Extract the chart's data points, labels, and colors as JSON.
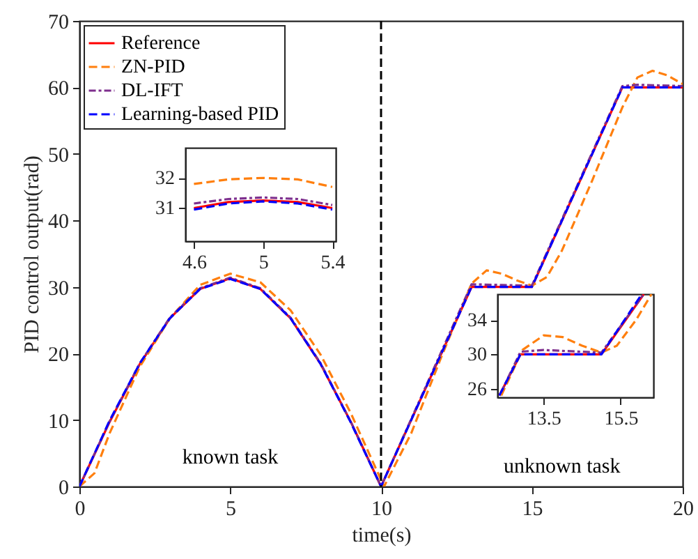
{
  "chart_data": [
    {
      "type": "line",
      "xlabel": "time(s)",
      "ylabel": "PID control output(rad)",
      "xlim": [
        0,
        20
      ],
      "ylim": [
        0,
        70
      ],
      "xticks": [
        0,
        5,
        10,
        15,
        20
      ],
      "yticks": [
        0,
        10,
        20,
        30,
        40,
        50,
        60,
        70
      ],
      "grid": false,
      "legend": "top left",
      "marker": "none",
      "series": [
        {
          "name": "Reference",
          "color": "#ff0000",
          "line_style": "solid",
          "x": [
            0,
            1,
            2,
            3,
            4,
            5,
            6,
            7,
            8,
            9,
            10,
            13,
            15,
            18,
            20
          ],
          "values": [
            0,
            9.7,
            18.4,
            25.3,
            29.7,
            31.3,
            29.7,
            25.3,
            18.4,
            9.7,
            0,
            30,
            30,
            60,
            60
          ]
        },
        {
          "name": "ZN-PID",
          "color": "#ff7f0e",
          "line_style": "dashed",
          "x": [
            0,
            0.5,
            1,
            2,
            3,
            4,
            5,
            6,
            7,
            8,
            9,
            10.1,
            11,
            12,
            13,
            13.5,
            14,
            14.5,
            15,
            15.5,
            16,
            17,
            18,
            18.5,
            19,
            19.5,
            20
          ],
          "values": [
            0,
            2,
            8,
            18,
            25.3,
            30.3,
            32,
            30.7,
            26.5,
            19.8,
            11,
            0,
            8,
            19.5,
            30.5,
            32.5,
            32,
            31,
            30.2,
            31.5,
            35.5,
            46,
            57,
            61.5,
            62.5,
            61.8,
            60.5
          ]
        },
        {
          "name": "DL-IFT",
          "color": "#7e2f8e",
          "line_style": "dashdot",
          "x": [
            0,
            1,
            2,
            3,
            4,
            5,
            6,
            7,
            8,
            9,
            10,
            13,
            14,
            15,
            18,
            18.5,
            20
          ],
          "values": [
            0,
            9.8,
            18.5,
            25.4,
            29.8,
            31.4,
            29.8,
            25.4,
            18.5,
            9.7,
            0,
            30.4,
            30.3,
            30.2,
            60.2,
            60.4,
            60.2
          ]
        },
        {
          "name": "Learning-based PID",
          "color": "#0000ff",
          "line_style": "dashed",
          "x": [
            0,
            1,
            2,
            3,
            4,
            5,
            6,
            7,
            8,
            9,
            10,
            13,
            15,
            18,
            20
          ],
          "values": [
            0,
            9.9,
            18.5,
            25.3,
            29.7,
            31.2,
            29.7,
            25.3,
            18.4,
            9.6,
            0,
            30,
            30,
            60,
            60
          ]
        }
      ],
      "ref_lines": [
        {
          "axis": "x",
          "value": 10,
          "color": "#000000",
          "line_style": "dashed"
        }
      ],
      "annotations": [
        "known task",
        "unknown task"
      ]
    },
    {
      "type": "line",
      "xlim": [
        4.55,
        5.42
      ],
      "ylim": [
        29.9,
        33
      ],
      "xticks": [
        4.6,
        5,
        5.4
      ],
      "yticks": [
        31,
        32
      ],
      "grid": false,
      "marker": "none",
      "series": [
        {
          "color": "#ff0000",
          "line_style": "solid",
          "x": [
            4.6,
            4.8,
            5,
            5.2,
            5.4
          ],
          "values": [
            31.0,
            31.2,
            31.25,
            31.2,
            31.0
          ]
        },
        {
          "color": "#ff7f0e",
          "line_style": "dashed",
          "x": [
            4.6,
            4.8,
            5,
            5.2,
            5.4
          ],
          "values": [
            31.8,
            31.95,
            32.0,
            31.95,
            31.7
          ]
        },
        {
          "color": "#7e2f8e",
          "line_style": "dashdot",
          "x": [
            4.6,
            4.8,
            5,
            5.2,
            5.4
          ],
          "values": [
            31.15,
            31.3,
            31.35,
            31.3,
            31.1
          ]
        },
        {
          "color": "#0000ff",
          "line_style": "dashed",
          "x": [
            4.6,
            4.8,
            5,
            5.2,
            5.4
          ],
          "values": [
            30.95,
            31.15,
            31.22,
            31.15,
            30.95
          ]
        }
      ]
    },
    {
      "type": "line",
      "xlim": [
        12.3,
        16.35
      ],
      "ylim": [
        25,
        37
      ],
      "xticks": [
        13.5,
        15.5
      ],
      "yticks": [
        26,
        30,
        34
      ],
      "grid": false,
      "marker": "none",
      "series": [
        {
          "color": "#ff0000",
          "line_style": "solid",
          "x": [
            12.35,
            12.9,
            15,
            16.1
          ],
          "values": [
            25.2,
            30,
            30,
            37
          ]
        },
        {
          "color": "#ff7f0e",
          "line_style": "dashed",
          "x": [
            12.4,
            12.95,
            13.5,
            14,
            14.5,
            15,
            15.4,
            15.9,
            16.3
          ],
          "values": [
            25.2,
            30.5,
            32.2,
            32,
            31,
            30.2,
            31,
            34,
            37
          ]
        },
        {
          "color": "#7e2f8e",
          "line_style": "dashdot",
          "x": [
            12.4,
            12.9,
            13.5,
            15,
            16.1
          ],
          "values": [
            25.6,
            30.3,
            30.5,
            30.2,
            37
          ]
        },
        {
          "color": "#0000ff",
          "line_style": "dashed",
          "x": [
            12.35,
            12.9,
            15,
            16.05
          ],
          "values": [
            25.2,
            30,
            30,
            37
          ]
        }
      ]
    }
  ]
}
